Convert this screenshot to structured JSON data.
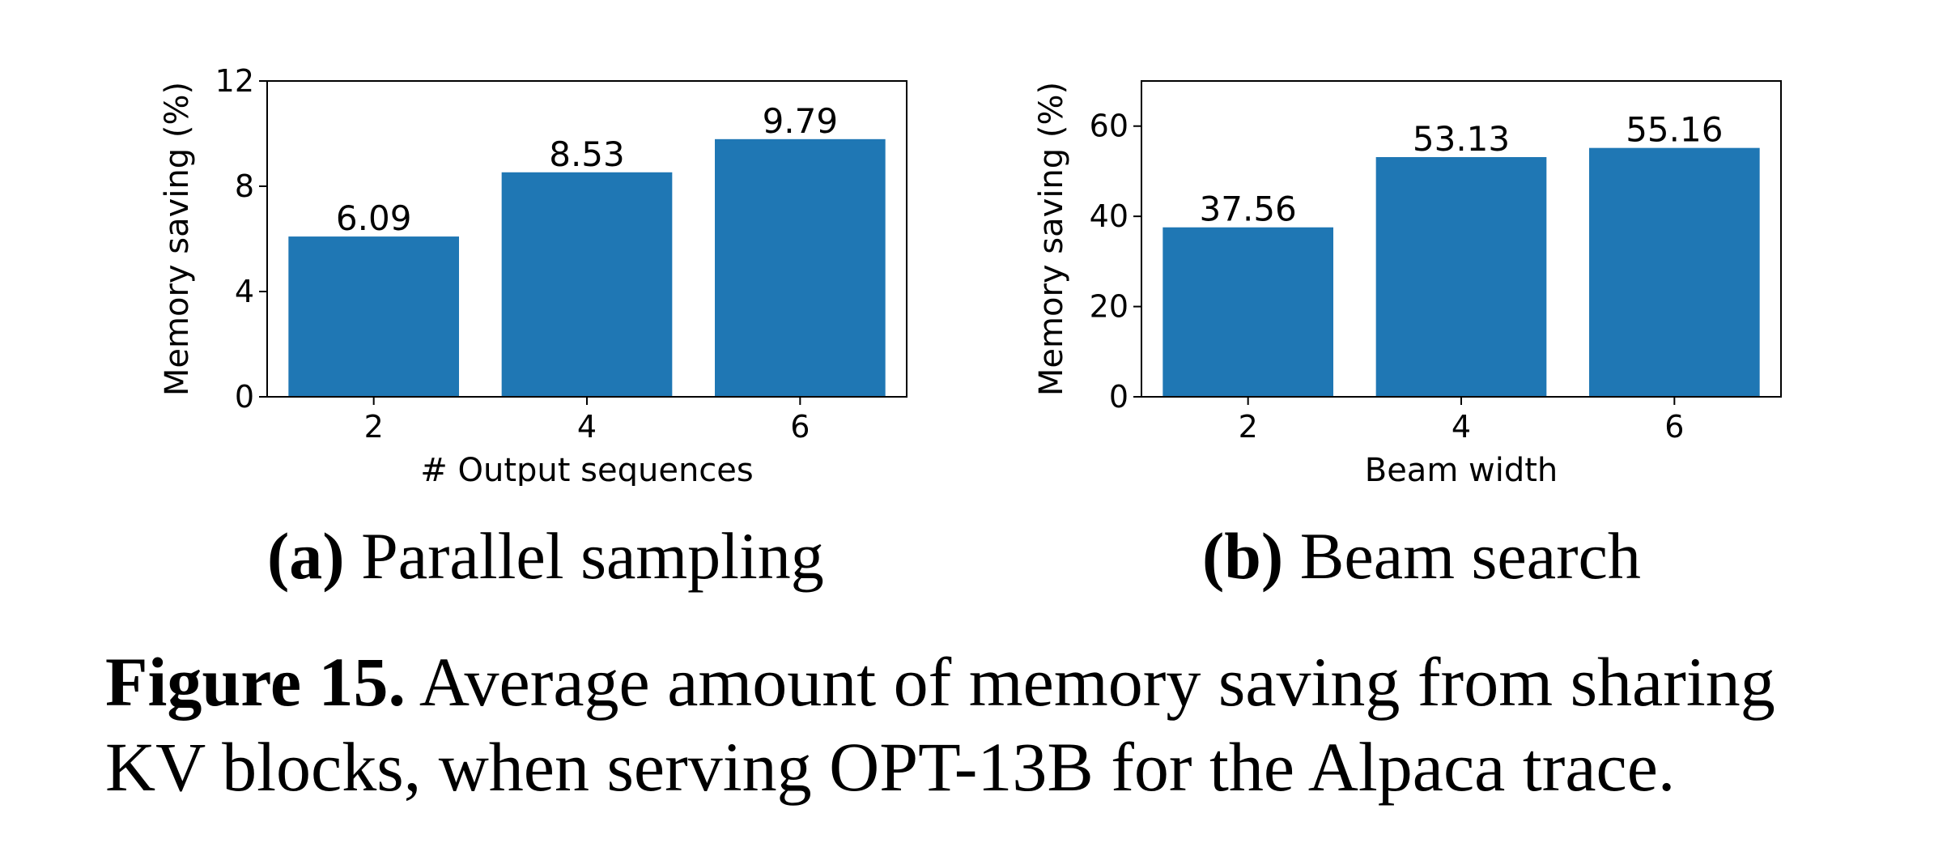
{
  "chart_data": [
    {
      "type": "bar",
      "categories": [
        "2",
        "4",
        "6"
      ],
      "values": [
        6.09,
        8.53,
        9.79
      ],
      "data_labels": [
        "6.09",
        "8.53",
        "9.79"
      ],
      "xlabel": "# Output sequences",
      "ylabel": "Memory saving (%)",
      "ylim": [
        0,
        12
      ],
      "yticks": [
        "0",
        "4",
        "8",
        "12"
      ],
      "ytick_values": [
        0,
        4,
        8,
        12
      ],
      "bar_color": "#1f77b4",
      "grid": false
    },
    {
      "type": "bar",
      "categories": [
        "2",
        "4",
        "6"
      ],
      "values": [
        37.56,
        53.13,
        55.16
      ],
      "data_labels": [
        "37.56",
        "53.13",
        "55.16"
      ],
      "xlabel": "Beam width",
      "ylabel": "Memory saving (%)",
      "ylim": [
        0,
        70
      ],
      "yticks": [
        "0",
        "20",
        "40",
        "60"
      ],
      "ytick_values": [
        0,
        20,
        40,
        60
      ],
      "bar_color": "#1f77b4",
      "grid": false
    }
  ],
  "subcaptions": {
    "a_label": "(a)",
    "a_text": "Parallel sampling",
    "b_label": "(b)",
    "b_text": "Beam search"
  },
  "caption": {
    "label": "Figure 15.",
    "text": "Average amount of memory saving from sharing KV blocks, when serving OPT-13B for the Alpaca trace."
  }
}
